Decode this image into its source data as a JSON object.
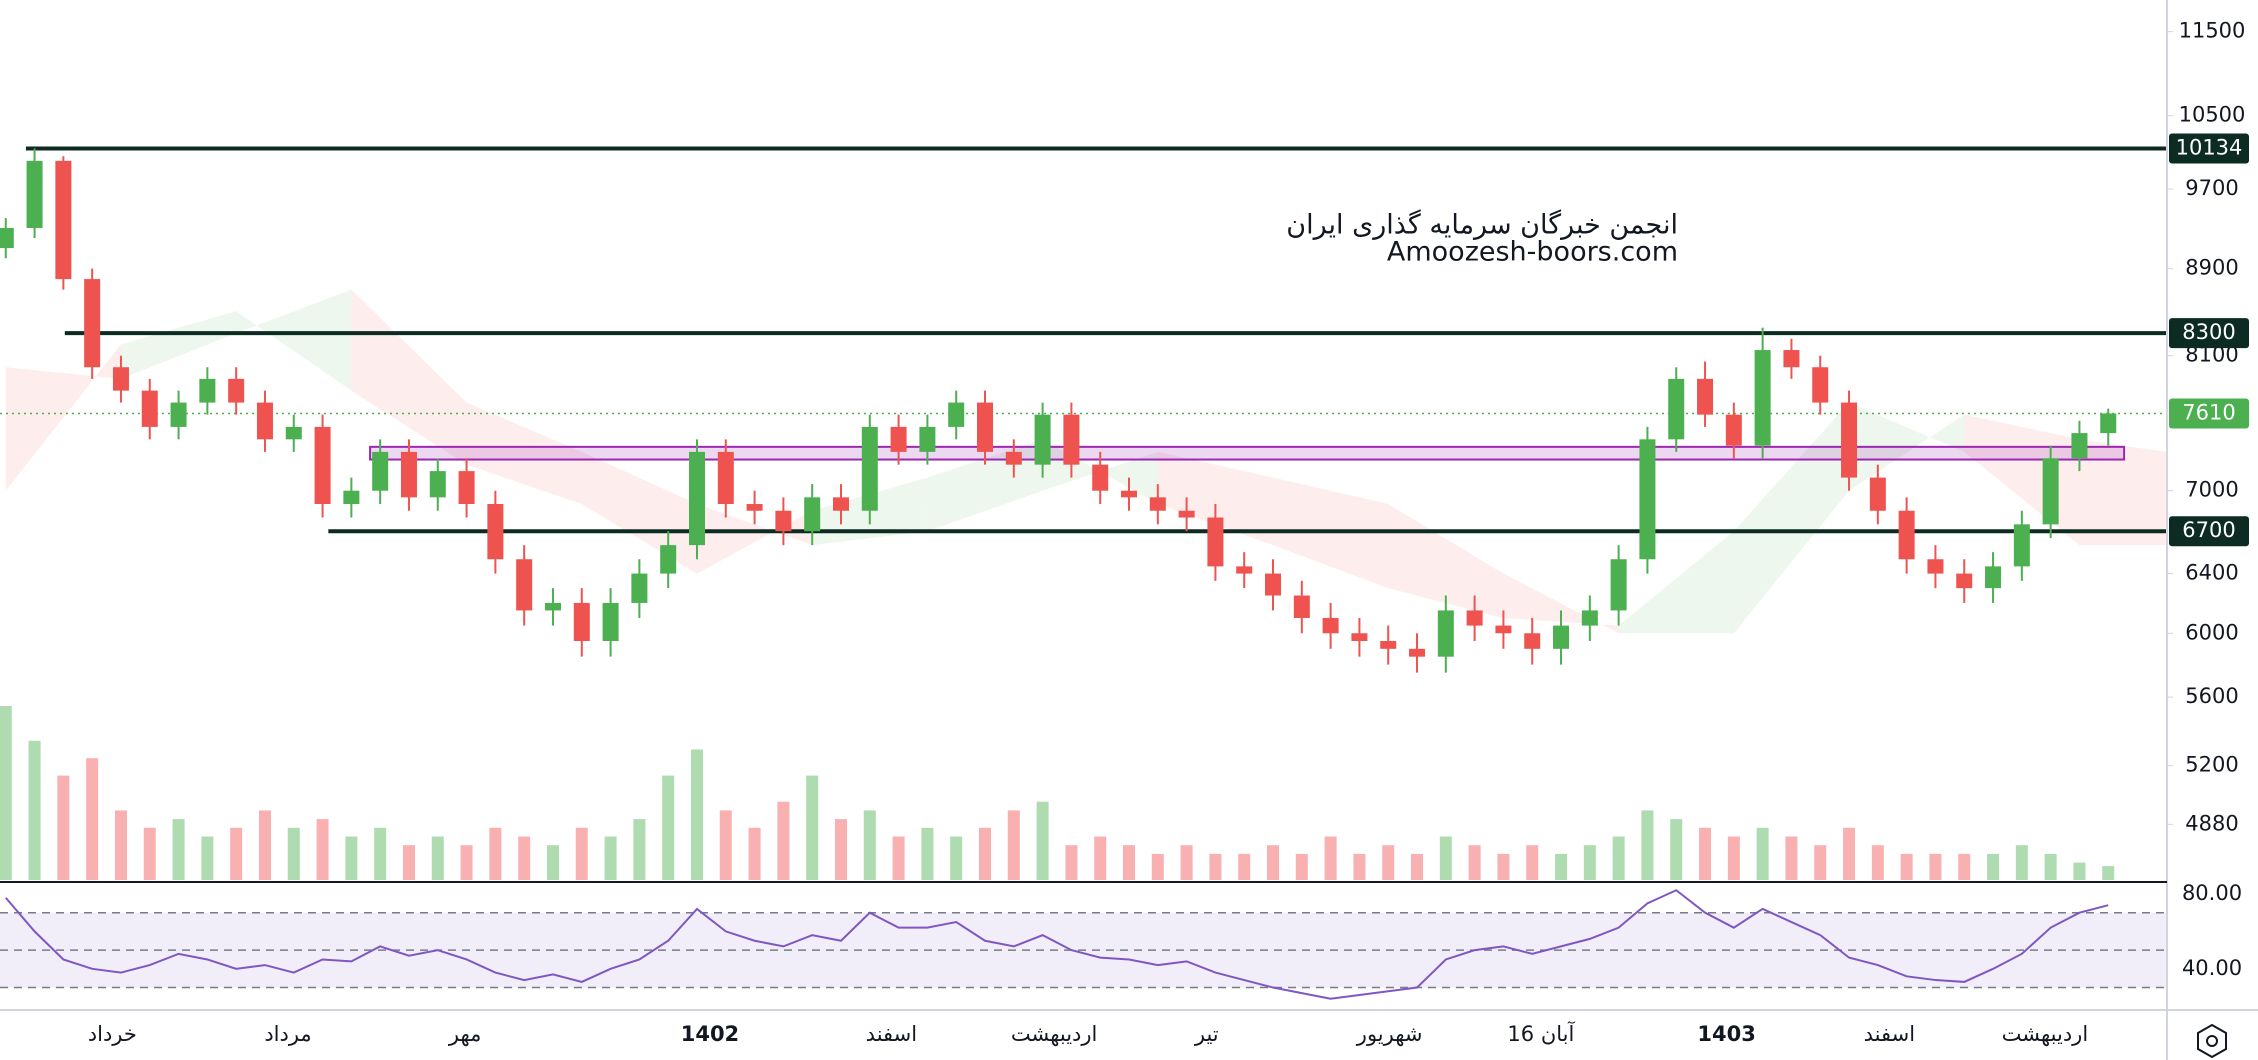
{
  "chart_data": {
    "type": "candlestick",
    "watermark": [
      "انجمن خبرگان سرمایه گذاری ایران",
      "Amoozesh-boors.com"
    ],
    "log_scale": true,
    "colors": {
      "up": "#4caf50",
      "down": "#ef5350",
      "rsi": "#7e57c2",
      "level": "#0c2b22",
      "current": "#4caf50",
      "zone": "#9c27b0"
    },
    "open": [
      9100,
      9300,
      10000,
      8800,
      8000,
      7800,
      7500,
      7700,
      7900,
      7700,
      7400,
      7500,
      6900,
      7000,
      7300,
      6950,
      7150,
      6900,
      6500,
      6150,
      6200,
      5950,
      6200,
      6400,
      6600,
      7300,
      6900,
      6850,
      6700,
      6950,
      6850,
      7500,
      7300,
      7500,
      7700,
      7300,
      7200,
      7600,
      7200,
      7000,
      6950,
      6850,
      6800,
      6450,
      6400,
      6250,
      6100,
      6000,
      5950,
      5900,
      5850,
      6150,
      6050,
      6000,
      5900,
      6050,
      6150,
      6500,
      7400,
      7900,
      7600,
      7350,
      8150,
      8000,
      7700,
      7100,
      6850,
      6500,
      6400,
      6300,
      6450,
      6750,
      7250,
      7450
    ],
    "high": [
      9400,
      10134,
      10050,
      8900,
      8100,
      7900,
      7800,
      8000,
      8000,
      7800,
      7600,
      7600,
      7100,
      7400,
      7400,
      7250,
      7250,
      7000,
      6600,
      6300,
      6300,
      6300,
      6500,
      6700,
      7400,
      7400,
      7000,
      6950,
      7050,
      7050,
      7600,
      7600,
      7600,
      7800,
      7800,
      7400,
      7700,
      7700,
      7300,
      7100,
      7050,
      6950,
      6900,
      6550,
      6500,
      6350,
      6200,
      6100,
      6050,
      6000,
      6250,
      6250,
      6150,
      6100,
      6150,
      6250,
      6600,
      7500,
      8000,
      8050,
      7700,
      8350,
      8250,
      8100,
      7800,
      7200,
      6950,
      6600,
      6500,
      6550,
      6850,
      7350,
      7550,
      7650
    ],
    "low": [
      9000,
      9200,
      8700,
      7900,
      7700,
      7400,
      7400,
      7600,
      7600,
      7300,
      7300,
      6800,
      6800,
      6900,
      6850,
      6850,
      6800,
      6400,
      6050,
      6050,
      5850,
      5850,
      6100,
      6300,
      6500,
      6800,
      6750,
      6600,
      6600,
      6750,
      6750,
      7200,
      7200,
      7400,
      7200,
      7100,
      7100,
      7100,
      6900,
      6850,
      6750,
      6700,
      6350,
      6300,
      6150,
      6000,
      5900,
      5850,
      5800,
      5750,
      5750,
      5950,
      5900,
      5800,
      5800,
      5950,
      6050,
      6400,
      7300,
      7500,
      7250,
      7250,
      7900,
      7600,
      7000,
      6750,
      6400,
      6300,
      6200,
      6200,
      6350,
      6650,
      7150,
      7350
    ],
    "close": [
      9300,
      10000,
      8800,
      8000,
      7800,
      7500,
      7700,
      7900,
      7700,
      7400,
      7500,
      6900,
      7000,
      7300,
      6950,
      7150,
      6900,
      6500,
      6150,
      6200,
      5950,
      6200,
      6400,
      6600,
      7300,
      6900,
      6850,
      6700,
      6950,
      6850,
      7500,
      7300,
      7500,
      7700,
      7300,
      7200,
      7600,
      7200,
      7000,
      6950,
      6850,
      6800,
      6450,
      6400,
      6250,
      6100,
      6000,
      5950,
      5900,
      5850,
      6150,
      6050,
      6000,
      5900,
      6050,
      6150,
      6500,
      7400,
      7900,
      7600,
      7350,
      8150,
      8000,
      7700,
      7100,
      6850,
      6500,
      6400,
      6300,
      6450,
      6750,
      7250,
      7450,
      7610
    ],
    "volume": [
      100,
      80,
      60,
      70,
      40,
      30,
      35,
      25,
      30,
      40,
      30,
      35,
      25,
      30,
      20,
      25,
      20,
      30,
      25,
      20,
      30,
      25,
      35,
      60,
      75,
      40,
      30,
      45,
      60,
      35,
      40,
      25,
      30,
      25,
      30,
      40,
      45,
      20,
      25,
      20,
      15,
      20,
      15,
      15,
      20,
      15,
      25,
      15,
      20,
      15,
      25,
      20,
      15,
      20,
      15,
      20,
      25,
      40,
      35,
      30,
      25,
      30,
      25,
      20,
      30,
      20,
      15,
      15,
      15,
      15,
      20,
      15,
      10,
      8
    ],
    "vlim": [
      0,
      100
    ],
    "rsi": [
      78,
      60,
      45,
      40,
      38,
      42,
      48,
      45,
      40,
      42,
      38,
      45,
      44,
      52,
      47,
      50,
      45,
      38,
      34,
      37,
      33,
      40,
      45,
      55,
      72,
      60,
      55,
      52,
      58,
      55,
      70,
      62,
      62,
      65,
      55,
      52,
      58,
      50,
      46,
      45,
      42,
      44,
      38,
      34,
      30,
      27,
      24,
      26,
      28,
      30,
      45,
      50,
      52,
      48,
      52,
      56,
      62,
      75,
      82,
      70,
      62,
      72,
      65,
      58,
      46,
      42,
      36,
      34,
      33,
      40,
      48,
      62,
      70,
      74
    ],
    "rsi_lim": [
      18,
      86.4
    ],
    "rsi_ticks": [
      {
        "value": 80,
        "label": "80.00"
      },
      {
        "value": 40,
        "label": "40.00"
      }
    ],
    "rsi_levels": [
      30,
      50,
      70
    ],
    "ylim": [
      4585,
      11900
    ],
    "yticks": [
      11500,
      10500,
      9700,
      8900,
      8100,
      7000,
      6400,
      6000,
      5600,
      5200,
      4880
    ],
    "xlim": [
      -0.2,
      75.04
    ],
    "xticks": [
      {
        "value": 3.7,
        "label": "خرداد"
      },
      {
        "value": 9.8,
        "label": "مرداد"
      },
      {
        "value": 15.95,
        "label": "مهر"
      },
      {
        "value": 24.45,
        "label": "1402"
      },
      {
        "value": 30.75,
        "label": "اسفند"
      },
      {
        "value": 36.4,
        "label": "اردیبهشت"
      },
      {
        "value": 41.7,
        "label": "تیر"
      },
      {
        "value": 48.05,
        "label": "شهریور"
      },
      {
        "value": 53.3,
        "label": "16 آبان"
      },
      {
        "value": 59.75,
        "label": "1403"
      },
      {
        "value": 65.4,
        "label": "اسفند"
      },
      {
        "value": 70.8,
        "label": "اردیبهشت"
      }
    ],
    "emphasized_xticks": [
      3,
      9
    ],
    "levels": [
      {
        "value": 10134,
        "from": 0.7
      },
      {
        "value": 8300,
        "from": 2.05
      },
      {
        "value": 6700,
        "from": 11.2
      }
    ],
    "current_price": 7610,
    "zone": {
      "from": 12.65,
      "to": 73.55,
      "low": 7240,
      "high": 7340
    },
    "cloud": {
      "x": [
        0,
        4,
        8,
        12,
        16,
        20,
        24,
        28,
        32,
        36,
        40,
        44,
        48,
        52,
        56,
        60,
        64,
        68,
        72,
        75
      ],
      "span_a": [
        7000,
        8200,
        8500,
        7800,
        7200,
        6900,
        6400,
        6850,
        7100,
        7400,
        6900,
        6600,
        6300,
        6100,
        6050,
        6700,
        7700,
        7300,
        6600,
        6600
      ],
      "span_b": [
        8000,
        7900,
        8300,
        8700,
        7700,
        7300,
        6900,
        6600,
        6700,
        7000,
        7300,
        7100,
        6900,
        6400,
        6000,
        6000,
        7000,
        7600,
        7400,
        7300
      ]
    }
  }
}
